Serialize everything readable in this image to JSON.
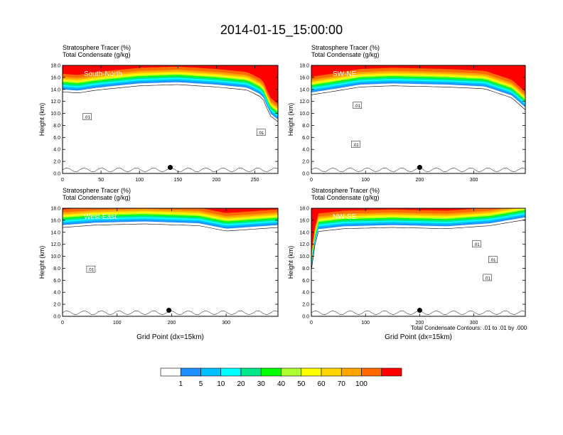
{
  "title": "2014-01-15_15:00:00",
  "panel_header_line1": "Stratosphere Tracer   (%)",
  "panel_header_line2": "Total Condensate   (g/kg)",
  "ylabel": "Height (km)",
  "xlabel": "Grid Point (dx=15km)",
  "footnote": "Total Condensate Contours: .01 to .01 by .000",
  "colorbar": {
    "levels": [
      "1",
      "5",
      "10",
      "20",
      "30",
      "40",
      "50",
      "60",
      "70",
      "100"
    ],
    "colors": [
      "#ffffff",
      "#1e90ff",
      "#00bfff",
      "#00ffff",
      "#00e68a",
      "#00ff00",
      "#adff2f",
      "#ffff00",
      "#ffd700",
      "#ffa500",
      "#ff6a00",
      "#ff0000"
    ]
  },
  "chart_data": [
    {
      "type": "heatmap",
      "panel_label": "South-North",
      "xlim": [
        0,
        280
      ],
      "ylim": [
        0,
        18
      ],
      "xticks": [
        0,
        50,
        100,
        150,
        200,
        250
      ],
      "yticks": [
        0.0,
        2.0,
        4.0,
        6.0,
        8.0,
        10.0,
        12.0,
        14.0,
        16.0,
        18.0
      ],
      "tropopause_km": [
        [
          0,
          14.0
        ],
        [
          20,
          13.8
        ],
        [
          40,
          14.2
        ],
        [
          60,
          14.5
        ],
        [
          100,
          15.0
        ],
        [
          150,
          15.2
        ],
        [
          200,
          14.8
        ],
        [
          240,
          14.3
        ],
        [
          260,
          13.0
        ],
        [
          270,
          10.0
        ],
        [
          280,
          9.0
        ]
      ],
      "contour_labels": [
        {
          "text": ".01",
          "x": 32,
          "y": 9.4
        },
        {
          "text": ".01",
          "x": 258,
          "y": 6.8
        }
      ],
      "marker": {
        "x": 140,
        "y": 1.0
      }
    },
    {
      "type": "heatmap",
      "panel_label": "SW-NE",
      "xlim": [
        0,
        395
      ],
      "ylim": [
        0,
        18
      ],
      "xticks": [
        0,
        100,
        200,
        300
      ],
      "yticks": [
        0.0,
        2.0,
        4.0,
        6.0,
        8.0,
        10.0,
        12.0,
        14.0,
        16.0,
        18.0
      ],
      "tropopause_km": [
        [
          0,
          13.5
        ],
        [
          50,
          14.2
        ],
        [
          90,
          14.8
        ],
        [
          150,
          15.0
        ],
        [
          250,
          14.8
        ],
        [
          320,
          14.5
        ],
        [
          370,
          13.0
        ],
        [
          395,
          11.0
        ]
      ],
      "contour_labels": [
        {
          "text": ".01",
          "x": 85,
          "y": 11.3
        },
        {
          "text": ".01",
          "x": 82,
          "y": 4.8
        }
      ],
      "marker": {
        "x": 200,
        "y": 1.0
      }
    },
    {
      "type": "heatmap",
      "panel_label": "West-East",
      "xlim": [
        0,
        395
      ],
      "ylim": [
        0,
        18
      ],
      "xticks": [
        0,
        100,
        200,
        300
      ],
      "yticks": [
        0.0,
        2.0,
        4.0,
        6.0,
        8.0,
        10.0,
        12.0,
        14.0,
        16.0,
        18.0
      ],
      "tropopause_km": [
        [
          0,
          15.2
        ],
        [
          60,
          15.6
        ],
        [
          150,
          15.8
        ],
        [
          250,
          15.5
        ],
        [
          300,
          14.6
        ],
        [
          395,
          15.2
        ]
      ],
      "contour_labels": [
        {
          "text": ".01",
          "x": 52,
          "y": 7.8
        }
      ],
      "marker": {
        "x": 195,
        "y": 1.0
      }
    },
    {
      "type": "heatmap",
      "panel_label": "NW-SE",
      "xlim": [
        0,
        395
      ],
      "ylim": [
        0,
        18
      ],
      "xticks": [
        0,
        100,
        200,
        300
      ],
      "yticks": [
        0.0,
        2.0,
        4.0,
        6.0,
        8.0,
        10.0,
        12.0,
        14.0,
        16.0,
        18.0
      ],
      "tropopause_km": [
        [
          0,
          8.0
        ],
        [
          10,
          14.5
        ],
        [
          60,
          15.0
        ],
        [
          150,
          15.2
        ],
        [
          250,
          15.0
        ],
        [
          330,
          15.5
        ],
        [
          395,
          16.5
        ]
      ],
      "contour_labels": [
        {
          "text": ".01",
          "x": 305,
          "y": 12.0
        },
        {
          "text": ".01",
          "x": 335,
          "y": 9.4
        },
        {
          "text": ".01",
          "x": 325,
          "y": 6.4
        }
      ],
      "marker": {
        "x": 200,
        "y": 1.0
      }
    }
  ]
}
